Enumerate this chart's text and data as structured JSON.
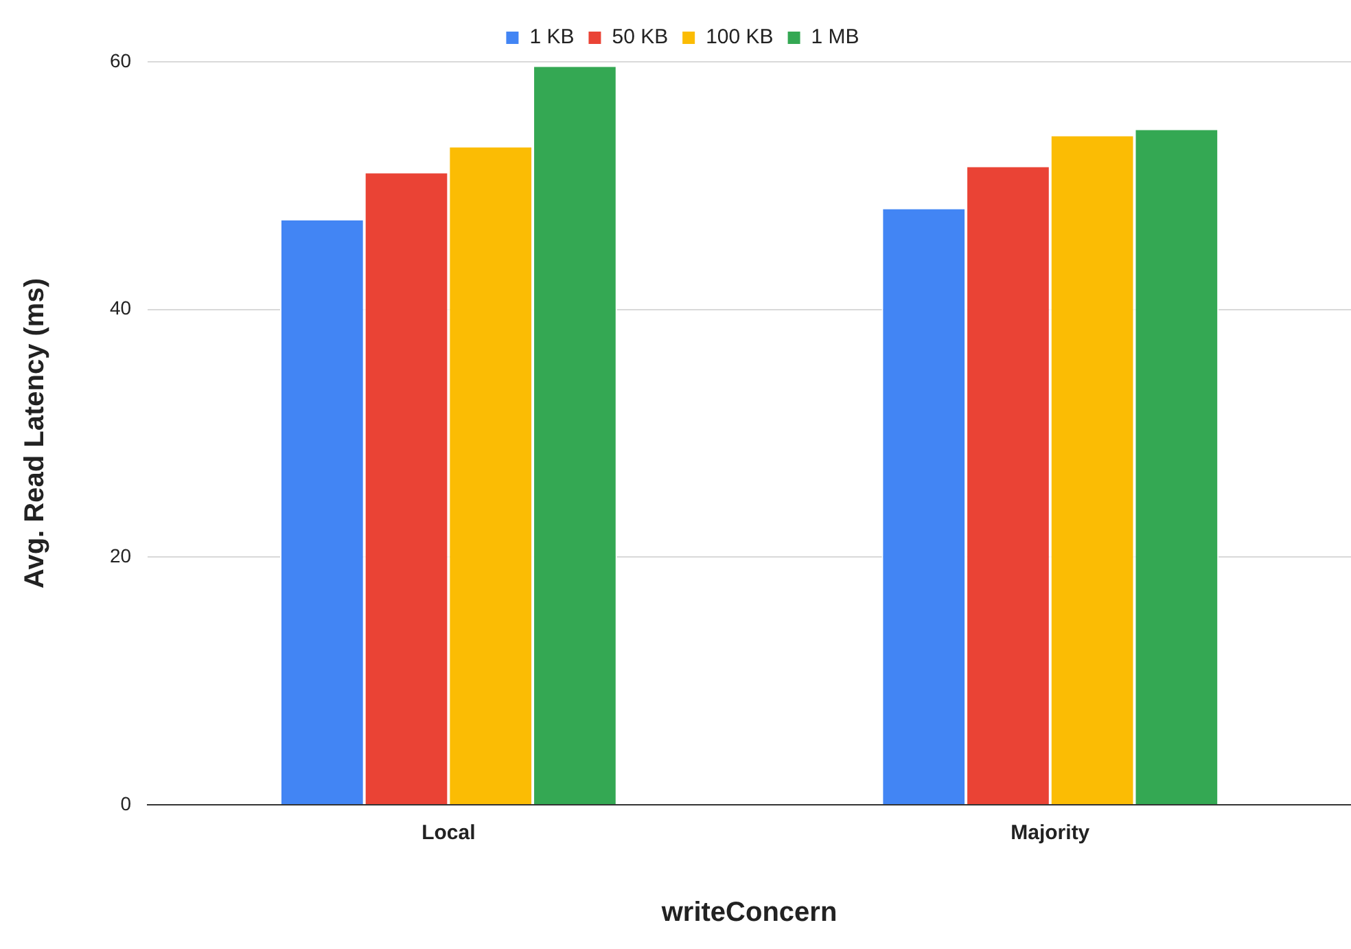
{
  "chart_data": {
    "type": "bar",
    "xlabel": "writeConcern",
    "ylabel": "Avg. Read Latency (ms)",
    "categories": [
      "Local",
      "Majority"
    ],
    "series": [
      {
        "name": "1 KB",
        "color": "#4285f4",
        "values": [
          47.3,
          48.2
        ]
      },
      {
        "name": "50 KB",
        "color": "#ea4335",
        "values": [
          51.1,
          51.6
        ]
      },
      {
        "name": "100 KB",
        "color": "#fbbc04",
        "values": [
          53.2,
          54.1
        ]
      },
      {
        "name": "1 MB",
        "color": "#34a853",
        "values": [
          59.7,
          54.6
        ]
      }
    ],
    "ylim": [
      0,
      60
    ],
    "yticks": [
      0,
      20,
      40,
      60
    ],
    "grid": "y",
    "legend": "top"
  }
}
